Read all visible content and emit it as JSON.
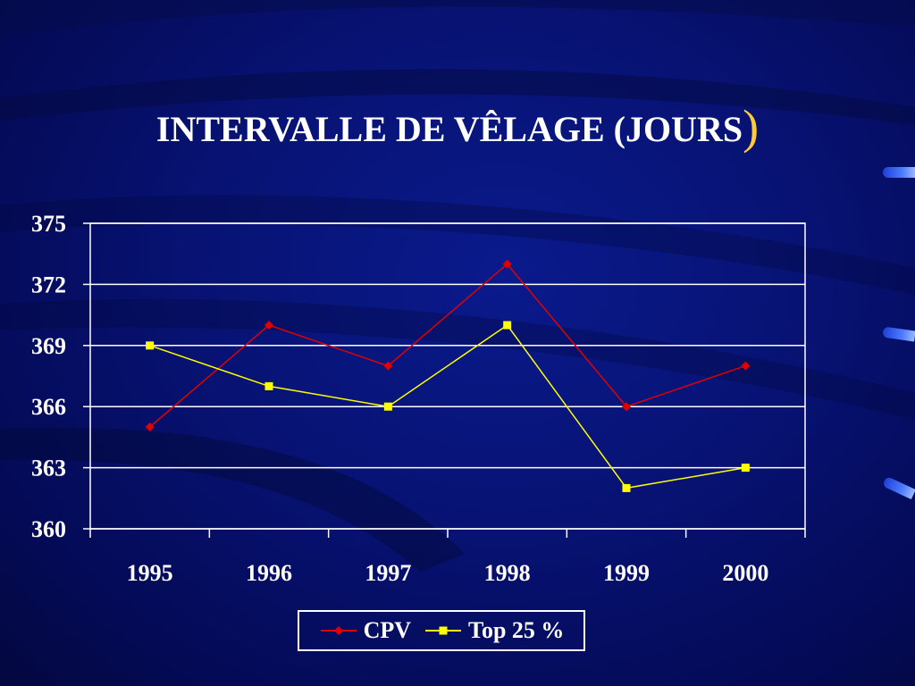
{
  "slide": {
    "title": "INTERVALLE DE VÊLAGE (JOURS",
    "title_paren": ")",
    "title_color": "#ffffff",
    "paren_color": "#ffcc33",
    "background_color": "#071272"
  },
  "chart_data": {
    "type": "line",
    "title": "INTERVALLE DE VÊLAGE (JOURS)",
    "xlabel": "",
    "ylabel": "",
    "categories": [
      "1995",
      "1996",
      "1997",
      "1998",
      "1999",
      "2000"
    ],
    "ylim": [
      360,
      375
    ],
    "yticks": [
      "360",
      "363",
      "366",
      "369",
      "372",
      "375"
    ],
    "grid": true,
    "legend_position": "bottom",
    "series": [
      {
        "name": "CPV",
        "color": "#e00000",
        "marker": "diamond",
        "values": [
          365,
          370,
          368,
          373,
          366,
          368
        ]
      },
      {
        "name": "Top 25 %",
        "color": "#ffff00",
        "marker": "square",
        "values": [
          369,
          367,
          366,
          370,
          362,
          363
        ]
      }
    ]
  }
}
